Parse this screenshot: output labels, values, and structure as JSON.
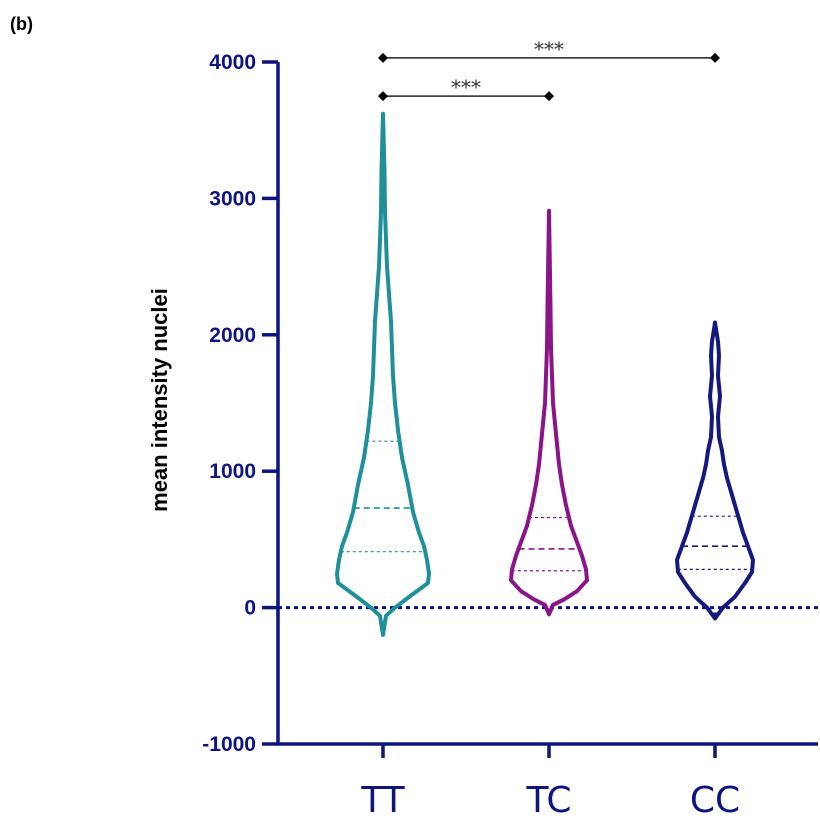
{
  "panel_label": "(b)",
  "colors": {
    "axis": "#0d1480",
    "TT": "#1f8f99",
    "TC": "#8b1489",
    "CC": "#15197d",
    "bracket": "#222222"
  },
  "chart_data": {
    "type": "violin",
    "title": "",
    "xlabel": "",
    "ylabel": "mean intensity nuclei",
    "ylim": [
      -1000,
      4000
    ],
    "yticks": [
      -1000,
      0,
      1000,
      2000,
      3000,
      4000
    ],
    "ytick_labels": [
      "-1000",
      "0",
      "1000",
      "2000",
      "3000",
      "4000"
    ],
    "categories": [
      "TT",
      "TC",
      "CC"
    ],
    "reference_line_y": 0,
    "series": [
      {
        "name": "TT",
        "min": -200,
        "max": 3620,
        "quartiles": [
          410,
          730,
          1220
        ],
        "profile": [
          [
            -200,
            0
          ],
          [
            -60,
            3
          ],
          [
            0,
            12
          ],
          [
            100,
            30
          ],
          [
            180,
            45
          ],
          [
            250,
            46
          ],
          [
            350,
            44
          ],
          [
            450,
            41
          ],
          [
            550,
            36
          ],
          [
            700,
            30
          ],
          [
            900,
            25
          ],
          [
            1100,
            19
          ],
          [
            1300,
            15
          ],
          [
            1500,
            12
          ],
          [
            1700,
            10
          ],
          [
            1900,
            9
          ],
          [
            2100,
            8
          ],
          [
            2300,
            6
          ],
          [
            2500,
            4
          ],
          [
            2700,
            3
          ],
          [
            2900,
            2
          ],
          [
            3200,
            1.5
          ],
          [
            3620,
            0
          ]
        ]
      },
      {
        "name": "TC",
        "min": -50,
        "max": 2910,
        "quartiles": [
          270,
          430,
          660
        ],
        "profile": [
          [
            -50,
            0
          ],
          [
            20,
            4
          ],
          [
            60,
            15
          ],
          [
            120,
            28
          ],
          [
            200,
            38
          ],
          [
            280,
            37
          ],
          [
            380,
            33
          ],
          [
            480,
            28
          ],
          [
            600,
            22
          ],
          [
            750,
            17
          ],
          [
            900,
            13
          ],
          [
            1050,
            10
          ],
          [
            1200,
            8
          ],
          [
            1350,
            6
          ],
          [
            1500,
            4
          ],
          [
            1700,
            3
          ],
          [
            1900,
            2
          ],
          [
            2200,
            1.5
          ],
          [
            2910,
            0
          ]
        ]
      },
      {
        "name": "CC",
        "min": -80,
        "max": 2090,
        "quartiles": [
          280,
          450,
          670
        ],
        "profile": [
          [
            -80,
            0
          ],
          [
            0,
            8
          ],
          [
            80,
            20
          ],
          [
            180,
            30
          ],
          [
            260,
            37
          ],
          [
            350,
            38
          ],
          [
            450,
            33
          ],
          [
            550,
            28
          ],
          [
            650,
            24
          ],
          [
            750,
            20
          ],
          [
            850,
            16
          ],
          [
            950,
            12
          ],
          [
            1050,
            9
          ],
          [
            1150,
            7
          ],
          [
            1250,
            4
          ],
          [
            1400,
            3
          ],
          [
            1550,
            5
          ],
          [
            1700,
            3
          ],
          [
            1850,
            4
          ],
          [
            1950,
            3
          ],
          [
            2090,
            0
          ]
        ]
      }
    ],
    "significance": [
      {
        "from": "TT",
        "to": "CC",
        "label": "***",
        "y": 4030
      },
      {
        "from": "TT",
        "to": "TC",
        "label": "***",
        "y": 3750
      }
    ]
  }
}
